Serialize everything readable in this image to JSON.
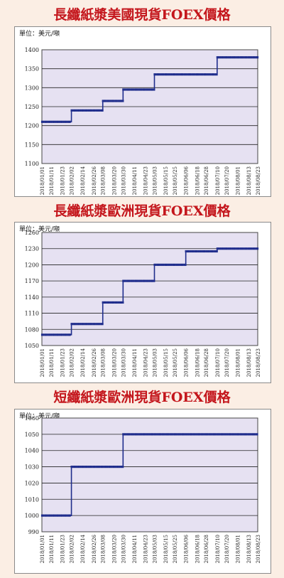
{
  "charts": [
    {
      "title": "長纖紙漿美國現貨FOEX價格",
      "unit_label": "單位：美元/噸"
    },
    {
      "title": "長纖紙漿歐洲現貨FOEX價格",
      "unit_label": "單位：美元/噸"
    },
    {
      "title": "短纖紙漿歐洲現貨FOEX價格",
      "unit_label": "單位：美元/噸"
    }
  ],
  "chart_data": [
    {
      "type": "line",
      "title": "長纖紙漿美國現貨FOEX價格",
      "ylabel": "單位：美元/噸",
      "ylim": [
        1100,
        1400
      ],
      "yticks": [
        1100,
        1150,
        1200,
        1250,
        1300,
        1350,
        1400
      ],
      "grid": true,
      "categories": [
        "2018/01/01",
        "2018/01/11",
        "2018/01/23",
        "2018/02/02",
        "2018/02/14",
        "2018/02/26",
        "2018/03/08",
        "2018/03/20",
        "2018/03/30",
        "2018/04/11",
        "2018/04/23",
        "2018/05/03",
        "2018/05/15",
        "2018/05/25",
        "2018/06/06",
        "2018/06/18",
        "2018/06/28",
        "2018/07/10",
        "2018/07/20",
        "2018/08/01",
        "2018/08/13",
        "2018/08/23"
      ],
      "steps": [
        {
          "start": "2018/01/01",
          "value": 1210
        },
        {
          "start": "2018/02/02",
          "value": 1240
        },
        {
          "start": "2018/03/08",
          "value": 1265
        },
        {
          "start": "2018/03/30",
          "value": 1295
        },
        {
          "start": "2018/05/03",
          "value": 1335
        },
        {
          "start": "2018/07/10",
          "value": 1380
        }
      ],
      "line_color": "#1f2d8c"
    },
    {
      "type": "line",
      "title": "長纖紙漿歐洲現貨FOEX價格",
      "ylabel": "單位：美元/噸",
      "ylim": [
        1050,
        1260
      ],
      "yticks": [
        1050,
        1080,
        1110,
        1140,
        1170,
        1200,
        1230,
        1260
      ],
      "grid": true,
      "categories": [
        "2018/01/01",
        "2018/01/11",
        "2018/01/23",
        "2018/02/02",
        "2018/02/14",
        "2018/02/26",
        "2018/03/08",
        "2018/03/20",
        "2018/03/30",
        "2018/04/11",
        "2018/04/23",
        "2018/05/03",
        "2018/05/15",
        "2018/05/25",
        "2018/06/06",
        "2018/06/18",
        "2018/06/28",
        "2018/07/10",
        "2018/07/20",
        "2018/08/01",
        "2018/08/13",
        "2018/08/23"
      ],
      "steps": [
        {
          "start": "2018/01/01",
          "value": 1070
        },
        {
          "start": "2018/02/02",
          "value": 1090
        },
        {
          "start": "2018/03/08",
          "value": 1130
        },
        {
          "start": "2018/03/30",
          "value": 1170
        },
        {
          "start": "2018/05/03",
          "value": 1200
        },
        {
          "start": "2018/06/06",
          "value": 1225
        },
        {
          "start": "2018/07/10",
          "value": 1230
        }
      ],
      "line_color": "#1f2d8c"
    },
    {
      "type": "line",
      "title": "短纖紙漿歐洲現貨FOEX價格",
      "ylabel": "單位：美元/噸",
      "ylim": [
        990,
        1060
      ],
      "yticks": [
        990,
        1000,
        1010,
        1020,
        1030,
        1040,
        1050,
        1060
      ],
      "grid": true,
      "categories": [
        "2018/01/01",
        "2018/01/11",
        "2018/01/23",
        "2018/02/02",
        "2018/02/14",
        "2018/02/26",
        "2018/03/08",
        "2018/03/20",
        "2018/03/30",
        "2018/04/11",
        "2018/04/23",
        "2018/05/03",
        "2018/05/15",
        "2018/05/25",
        "2018/06/06",
        "2018/06/18",
        "2018/06/28",
        "2018/07/10",
        "2018/07/20",
        "2018/08/01",
        "2018/08/13",
        "2018/08/23"
      ],
      "steps": [
        {
          "start": "2018/01/01",
          "value": 1000
        },
        {
          "start": "2018/02/02",
          "value": 1030
        },
        {
          "start": "2018/03/30",
          "value": 1050
        }
      ],
      "line_color": "#1f2d8c"
    }
  ]
}
